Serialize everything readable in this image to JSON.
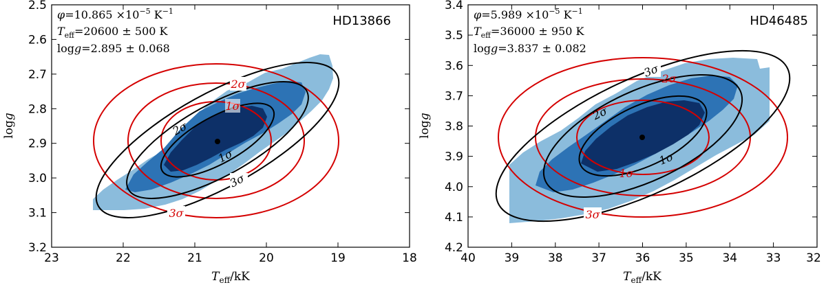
{
  "chart_data": [
    {
      "type": "contour",
      "star": "HD13866",
      "annotations": [
        "φ = 10.865 ×10⁻⁵  K⁻¹",
        "Teff = 20600 ± 500 K",
        "log g = 2.895 ± 0.068"
      ],
      "xlabel": "Teff/kK",
      "ylabel": "log g",
      "xlim": [
        23,
        18
      ],
      "ylim": [
        3.2,
        2.5
      ],
      "y_inverted": true,
      "xticks": [
        23,
        22,
        21,
        20,
        19,
        18
      ],
      "yticks": [
        2.5,
        2.6,
        2.7,
        2.8,
        2.9,
        3.0,
        3.1,
        3.2
      ],
      "xtick_labels": [
        "23",
        "22",
        "21",
        "20",
        "19",
        "18"
      ],
      "ytick_labels": [
        "2.5",
        "2.6",
        "2.7",
        "2.8",
        "2.9",
        "3.0",
        "3.1",
        "3.2"
      ],
      "best_fit": {
        "teff": 20.6,
        "logg": 2.895
      },
      "filled_regions": [
        {
          "level": "3σ",
          "color": "#8bbcdc",
          "teff_range": [
            22.4,
            19.2
          ],
          "logg_range": [
            3.1,
            2.64
          ]
        },
        {
          "level": "2σ",
          "color": "#2d73b5",
          "teff_range": [
            21.7,
            19.6
          ],
          "logg_range": [
            3.04,
            2.76
          ]
        },
        {
          "level": "1σ",
          "color": "#0d3068",
          "teff_range": [
            21.3,
            20.0
          ],
          "logg_range": [
            2.95,
            2.82
          ]
        }
      ],
      "black_ellipses": [
        {
          "label": "1σ",
          "teff_range": [
            21.6,
            19.9
          ],
          "logg_range": [
            3.0,
            2.79
          ]
        },
        {
          "label": "2σ",
          "teff_range": [
            22.2,
            19.4
          ],
          "logg_range": [
            3.06,
            2.72
          ]
        },
        {
          "label": "3σ",
          "teff_range": [
            22.6,
            18.8
          ],
          "logg_range": [
            3.13,
            2.66
          ]
        }
      ],
      "red_ellipses": [
        {
          "label": "1σ",
          "teff_center": 20.6,
          "logg_center": 2.895,
          "teff_halfwidth": 0.5,
          "logg_halfwidth": 0.068
        },
        {
          "label": "2σ",
          "teff_center": 20.6,
          "logg_center": 2.895,
          "teff_halfwidth": 1.0,
          "logg_halfwidth": 0.136
        },
        {
          "label": "3σ",
          "teff_center": 20.6,
          "logg_center": 2.895,
          "teff_halfwidth": 1.5,
          "logg_halfwidth": 0.204
        }
      ]
    },
    {
      "type": "contour",
      "star": "HD46485",
      "annotations": [
        "φ = 5.989 ×10⁻⁵  K⁻¹",
        "Teff = 36000 ± 950 K",
        "log g = 3.837 ± 0.082"
      ],
      "xlabel": "Teff/kK",
      "ylabel": "log g",
      "xlim": [
        40,
        32
      ],
      "ylim": [
        4.2,
        3.4
      ],
      "y_inverted": true,
      "xticks": [
        40,
        39,
        38,
        37,
        36,
        35,
        34,
        33,
        32
      ],
      "yticks": [
        3.4,
        3.5,
        3.6,
        3.7,
        3.8,
        3.9,
        4.0,
        4.1,
        4.2
      ],
      "xtick_labels": [
        "40",
        "39",
        "38",
        "37",
        "36",
        "35",
        "34",
        "33",
        "32"
      ],
      "ytick_labels": [
        "3.4",
        "3.5",
        "3.6",
        "3.7",
        "3.8",
        "3.9",
        "4.0",
        "4.1",
        "4.2"
      ],
      "best_fit": {
        "teff": 36.0,
        "logg": 3.837
      },
      "filled_regions": [
        {
          "level": "3σ",
          "color": "#8bbcdc",
          "teff_range": [
            39.0,
            33.0
          ],
          "logg_range": [
            4.12,
            3.6
          ]
        },
        {
          "level": "2σ",
          "color": "#2d73b5",
          "teff_range": [
            38.4,
            33.9
          ],
          "logg_range": [
            4.05,
            3.69
          ]
        },
        {
          "level": "1σ",
          "color": "#0d3068",
          "teff_range": [
            37.6,
            34.6
          ],
          "logg_range": [
            3.96,
            3.74
          ]
        }
      ],
      "black_ellipses": [
        {
          "label": "1σ",
          "teff_range": [
            37.8,
            34.2
          ],
          "logg_range": [
            3.97,
            3.71
          ]
        },
        {
          "label": "2σ",
          "teff_range": [
            38.6,
            33.4
          ],
          "logg_range": [
            4.04,
            3.64
          ]
        },
        {
          "label": "3σ",
          "teff_range": [
            39.4,
            32.6
          ],
          "logg_range": [
            4.11,
            3.57
          ]
        }
      ],
      "red_ellipses": [
        {
          "label": "1σ",
          "teff_center": 36.0,
          "logg_center": 3.837,
          "teff_halfwidth": 0.95,
          "logg_halfwidth": 0.082
        },
        {
          "label": "2σ",
          "teff_center": 36.0,
          "logg_center": 3.837,
          "teff_halfwidth": 1.9,
          "logg_halfwidth": 0.164
        },
        {
          "label": "3σ",
          "teff_center": 36.0,
          "logg_center": 3.837,
          "teff_halfwidth": 2.85,
          "logg_halfwidth": 0.246
        }
      ]
    }
  ]
}
